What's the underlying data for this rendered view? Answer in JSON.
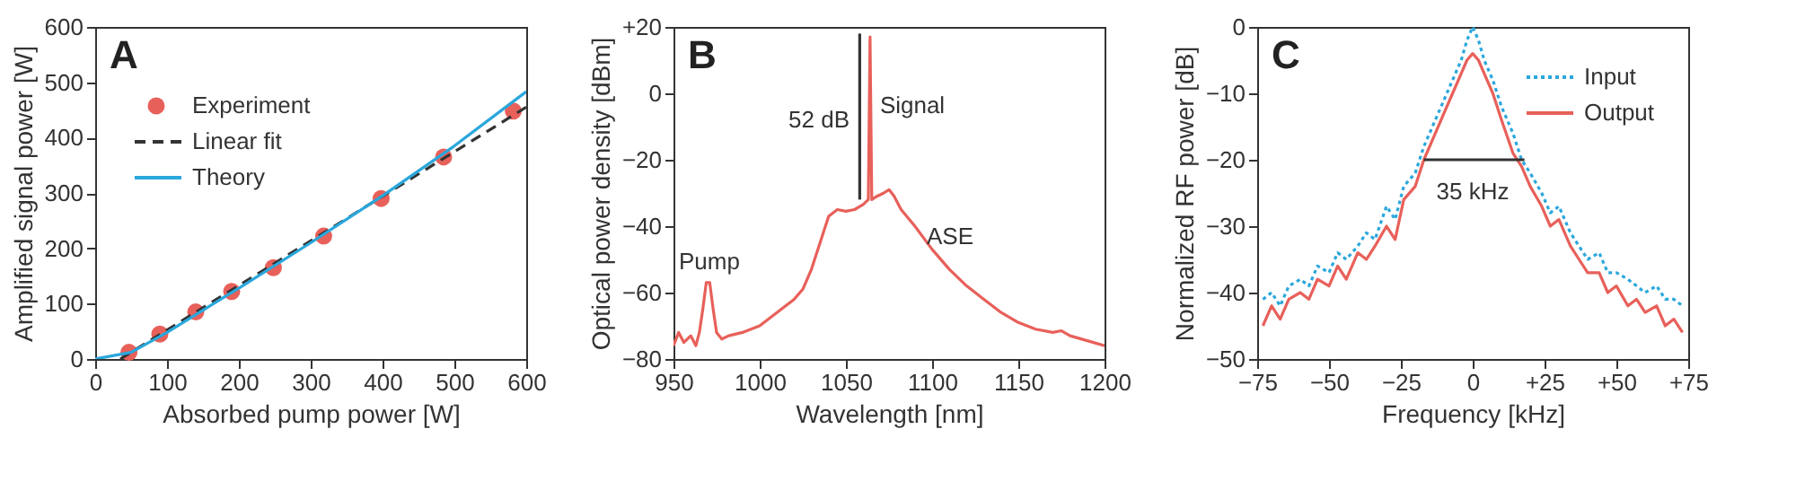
{
  "chart_data": [
    {
      "type": "scatter",
      "xlabel": "Absorbed pump power [W]",
      "ylabel": "Amplified signal power [W]",
      "xlim": [
        0,
        600
      ],
      "ylim": [
        0,
        600
      ],
      "xticks": [
        0,
        100,
        200,
        300,
        400,
        500,
        600
      ],
      "yticks": [
        0,
        100,
        200,
        300,
        400,
        500,
        600
      ],
      "legend": "top left",
      "annotations": [
        "A"
      ],
      "series": [
        {
          "name": "Experiment",
          "marker": "circle",
          "color": "#e8605a",
          "x": [
            47,
            90,
            140,
            190,
            248,
            318,
            398,
            485,
            582
          ],
          "values": [
            12,
            45,
            85,
            122,
            165,
            222,
            290,
            365,
            448
          ]
        },
        {
          "name": "Linear fit",
          "type": "line",
          "line_style": "dashed",
          "color": "#333333",
          "x": [
            35,
            600
          ],
          "values": [
            0,
            455
          ]
        },
        {
          "name": "Theory",
          "type": "line",
          "line_style": "solid",
          "color": "#2aa7dc",
          "x": [
            0,
            50,
            100,
            200,
            300,
            400,
            500,
            600
          ],
          "values": [
            0,
            12,
            48,
            128,
            210,
            295,
            385,
            483
          ]
        }
      ]
    },
    {
      "type": "line",
      "xlabel": "Wavelength [nm]",
      "ylabel": "Optical power density [dBm]",
      "xlim": [
        950,
        1200
      ],
      "ylim": [
        -80,
        20
      ],
      "xticks": [
        950,
        1000,
        1050,
        1100,
        1150,
        1200
      ],
      "yticks": [
        -80,
        -60,
        -40,
        -20,
        0,
        {
          "value": 20,
          "label": "+20"
        }
      ],
      "annotations": [
        "B",
        "Pump",
        "Signal",
        "52 dB",
        "ASE"
      ],
      "series": [
        {
          "color": "#e8605a",
          "x": [
            950,
            953,
            956,
            960,
            963,
            965,
            967,
            969,
            971,
            973,
            975,
            978,
            982,
            990,
            1000,
            1010,
            1020,
            1025,
            1030,
            1035,
            1040,
            1045,
            1050,
            1055,
            1060,
            1063,
            1064,
            1065,
            1068,
            1072,
            1075,
            1078,
            1082,
            1090,
            1100,
            1110,
            1120,
            1130,
            1140,
            1150,
            1160,
            1170,
            1175,
            1180,
            1190,
            1200
          ],
          "values": [
            -76,
            -72,
            -75,
            -73,
            -76,
            -72,
            -65,
            -57,
            -57,
            -65,
            -72,
            -74,
            -73,
            -72,
            -70,
            -66,
            -62,
            -59,
            -53,
            -45,
            -37,
            -35,
            -35.5,
            -35,
            -33.5,
            -32,
            17,
            -32,
            -31,
            -30,
            -29,
            -31,
            -35,
            -40,
            -47,
            -53,
            -58,
            -62,
            -66,
            -69,
            -71,
            -72,
            -71.5,
            -73,
            -74.5,
            -76
          ]
        },
        {
          "color": "#333333",
          "x": [
            1058,
            1058
          ],
          "values": [
            -32,
            18
          ]
        }
      ]
    },
    {
      "type": "line",
      "xlabel": "Frequency [kHz]",
      "ylabel": "Normalized RF power [dB]",
      "xlim": [
        -75,
        75
      ],
      "ylim": [
        -50,
        0
      ],
      "xticks": [
        -75,
        -50,
        -25,
        0,
        {
          "value": 25,
          "label": "+25"
        },
        {
          "value": 50,
          "label": "+50"
        },
        {
          "value": 75,
          "label": "+75"
        }
      ],
      "yticks": [
        -50,
        -40,
        -30,
        -20,
        -10,
        0
      ],
      "legend": "top right",
      "annotations": [
        "C",
        "35 kHz"
      ],
      "series": [
        {
          "name": "Input",
          "line_style": "dotted",
          "color": "#2aa7dc",
          "x": [
            -73,
            -70,
            -67,
            -64,
            -60,
            -57,
            -54,
            -50,
            -47,
            -44,
            -40,
            -37,
            -34,
            -30,
            -27,
            -24,
            -20,
            -17,
            -14,
            -10,
            -7,
            -4,
            -2,
            0,
            2,
            4,
            7,
            10,
            14,
            17,
            20,
            24,
            27,
            30,
            34,
            37,
            40,
            44,
            47,
            50,
            54,
            57,
            60,
            64,
            67,
            70,
            73
          ],
          "values": [
            -41,
            -40,
            -42,
            -39,
            -38,
            -39,
            -36,
            -37,
            -34,
            -35,
            -33,
            -31,
            -32,
            -27,
            -29,
            -24,
            -22,
            -18,
            -15,
            -11,
            -8,
            -5,
            -2,
            0,
            -2,
            -5,
            -8,
            -12,
            -16,
            -20,
            -22,
            -25,
            -28,
            -27,
            -31,
            -33,
            -35,
            -34,
            -37,
            -37,
            -38,
            -39,
            -40,
            -39,
            -41,
            -41,
            -42
          ]
        },
        {
          "name": "Output",
          "line_style": "solid",
          "color": "#e8605a",
          "x": [
            -73,
            -70,
            -67,
            -64,
            -60,
            -57,
            -54,
            -50,
            -47,
            -44,
            -40,
            -37,
            -34,
            -30,
            -27,
            -24,
            -20,
            -17,
            -14,
            -10,
            -7,
            -4,
            -2,
            0,
            2,
            4,
            7,
            10,
            14,
            17,
            20,
            24,
            27,
            30,
            34,
            37,
            40,
            44,
            47,
            50,
            54,
            57,
            60,
            64,
            67,
            70,
            73
          ],
          "values": [
            -45,
            -42,
            -44,
            -41,
            -40,
            -41,
            -38,
            -39,
            -36,
            -38,
            -34,
            -35,
            -33,
            -30,
            -32,
            -26,
            -24,
            -20,
            -17,
            -13,
            -10,
            -7,
            -5,
            -4,
            -5,
            -7,
            -10,
            -14,
            -19,
            -21,
            -24,
            -27,
            -30,
            -29,
            -33,
            -35,
            -37,
            -37,
            -40,
            -39,
            -42,
            -41,
            -43,
            -42,
            -45,
            -44,
            -46
          ]
        },
        {
          "color": "#333333",
          "x": [
            -17,
            18
          ],
          "values": [
            -20,
            -20
          ]
        }
      ]
    }
  ]
}
